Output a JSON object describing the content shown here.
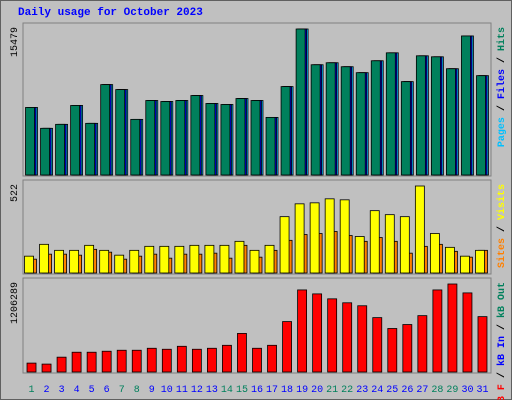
{
  "legend_separator": " / ",
  "chart_data": [
    {
      "type": "bar",
      "title": "Daily usage for October 2023",
      "ylim": [
        0,
        15479
      ],
      "yticks": [
        15479
      ],
      "series": [
        {
          "name": "Pages",
          "color": "#00c0ff",
          "values": [
            7160,
            4949,
            5370,
            7371,
            5476,
            9582,
            9056,
            5897,
            7898,
            7792,
            7898,
            8424,
            7582,
            7476,
            8108,
            7898,
            6107,
            9372,
            15479,
            11688,
            11899,
            11478,
            10846,
            12110,
            12952,
            9898,
            12636,
            12531,
            11267,
            14742,
            10530
          ]
        },
        {
          "name": "Files",
          "color": "#0000ff",
          "values": [
            7160,
            4949,
            5370,
            7371,
            5476,
            9582,
            9056,
            5897,
            7898,
            7792,
            7898,
            8424,
            7582,
            7476,
            8108,
            7898,
            6107,
            9372,
            15479,
            11688,
            11899,
            11478,
            10846,
            12110,
            12952,
            9898,
            12636,
            12531,
            11267,
            14742,
            10530
          ]
        },
        {
          "name": "Hits",
          "color": "#00805c",
          "values": [
            7160,
            4949,
            5370,
            7371,
            5476,
            9582,
            9056,
            5897,
            7898,
            7792,
            7898,
            8424,
            7582,
            7476,
            8108,
            7898,
            6107,
            9372,
            15479,
            11688,
            11899,
            11478,
            10846,
            12110,
            12952,
            9898,
            12636,
            12531,
            11267,
            14742,
            10530
          ]
        }
      ]
    },
    {
      "type": "bar",
      "ylim": [
        0,
        522
      ],
      "yticks": [
        522
      ],
      "series": [
        {
          "name": "Sites",
          "color": "#ff8000",
          "values": [
            83,
            113,
            113,
            107,
            142,
            125,
            83,
            101,
            113,
            89,
            113,
            113,
            119,
            89,
            166,
            95,
            136,
            196,
            231,
            237,
            249,
            225,
            190,
            213,
            190,
            119,
            160,
            172,
            130,
            95,
            136
          ]
        },
        {
          "name": "Visits",
          "color": "#ffff00",
          "values": [
            101,
            172,
            136,
            136,
            166,
            136,
            107,
            136,
            160,
            160,
            160,
            166,
            166,
            166,
            190,
            136,
            166,
            338,
            415,
            421,
            445,
            439,
            219,
            374,
            350,
            338,
            522,
            237,
            154,
            101,
            136
          ]
        }
      ]
    },
    {
      "type": "bar",
      "ylim": [
        0,
        1206289
      ],
      "yticks": [
        1206289
      ],
      "categories": [
        "1",
        "2",
        "3",
        "4",
        "5",
        "6",
        "7",
        "8",
        "9",
        "10",
        "11",
        "12",
        "13",
        "14",
        "15",
        "16",
        "17",
        "18",
        "19",
        "20",
        "21",
        "22",
        "23",
        "24",
        "25",
        "26",
        "27",
        "28",
        "29",
        "30",
        "31"
      ],
      "category_colors": [
        "#00805c",
        "#0000ff",
        "#0000ff",
        "#0000ff",
        "#0000ff",
        "#0000ff",
        "#00805c",
        "#00805c",
        "#0000ff",
        "#0000ff",
        "#0000ff",
        "#0000ff",
        "#0000ff",
        "#00805c",
        "#00805c",
        "#0000ff",
        "#0000ff",
        "#0000ff",
        "#0000ff",
        "#0000ff",
        "#00805c",
        "#00805c",
        "#0000ff",
        "#0000ff",
        "#0000ff",
        "#0000ff",
        "#0000ff",
        "#00805c",
        "#00805c",
        "#0000ff",
        "#0000ff"
      ],
      "series": [
        {
          "name": "kB F",
          "color": "#ff0000",
          "values": [
            121985,
            108432,
            203310,
            271080,
            271080,
            284634,
            298188,
            298188,
            325296,
            311742,
            352404,
            311742,
            325296,
            365958,
            528606,
            325296,
            365958,
            691254,
            1124982,
            1070766,
            1002996,
            948780,
            908118,
            745470,
            596376,
            650592,
            772578,
            1124982,
            1206289,
            1084320,
            759024
          ]
        }
      ],
      "extra_legend": [
        {
          "text": "kB In",
          "color": "#0000ff"
        },
        {
          "text": "kB Out",
          "color": "#00805c"
        }
      ]
    }
  ]
}
